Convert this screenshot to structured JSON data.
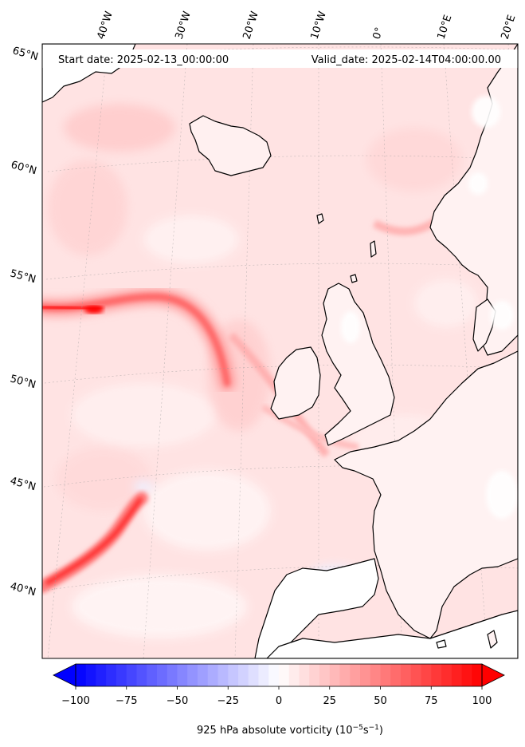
{
  "header": {
    "start_date": "Start date: 2025-02-13_00:00:00",
    "valid_date": "Valid_date: 2025-02-14T04:00:00.00"
  },
  "longitude_labels": [
    "40°W",
    "30°W",
    "20°W",
    "10°W",
    "0°",
    "10°E",
    "20°E"
  ],
  "latitude_labels": [
    "65°N",
    "60°N",
    "55°N",
    "50°N",
    "45°N",
    "40°N"
  ],
  "colorbar": {
    "ticks": [
      "−100",
      "−75",
      "−50",
      "−25",
      "0",
      "25",
      "50",
      "75",
      "100"
    ],
    "min": -100,
    "max": 100,
    "colormap": "bwr",
    "label_main": "925 hPa absolute vorticity (10",
    "label_exp1": "−5",
    "label_mid": "s",
    "label_exp2": "−1",
    "label_end": ")"
  },
  "colors": {
    "coastline": "#000000",
    "low": "#0000ff",
    "mid": "#ffffff",
    "high": "#ff0000",
    "background_field": "#ffe6e6"
  }
}
